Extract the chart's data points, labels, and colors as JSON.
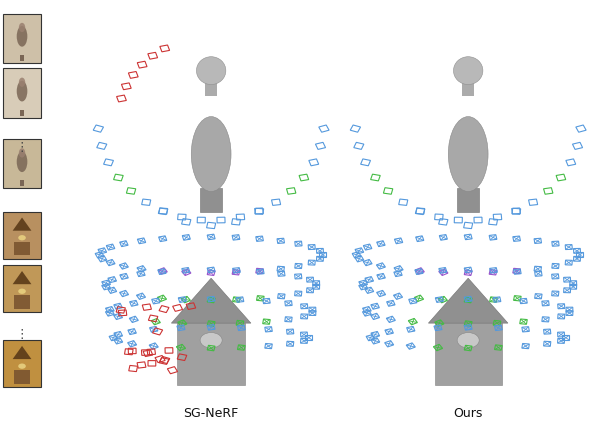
{
  "figure_width": 6.12,
  "figure_height": 4.28,
  "dpi": 100,
  "bg_color": "#ffffff",
  "label_sg": "SG-NeRF",
  "label_ours": "Ours",
  "label_fontsize": 9,
  "colors": {
    "blue": "#5599dd",
    "green": "#44bb44",
    "red": "#cc3333",
    "purple": "#9955cc",
    "teal": "#33aaaa"
  },
  "thumb_border": "#333333",
  "thumb_bg_top": "#d4c0a0",
  "thumb_bg_bot": "#b8883a",
  "sculpture_gray": "#aaaaaa",
  "sculpture_dark": "#888888",
  "clock_gray": "#999999",
  "cam_size_bust": 0.013,
  "cam_size_clock": 0.011
}
